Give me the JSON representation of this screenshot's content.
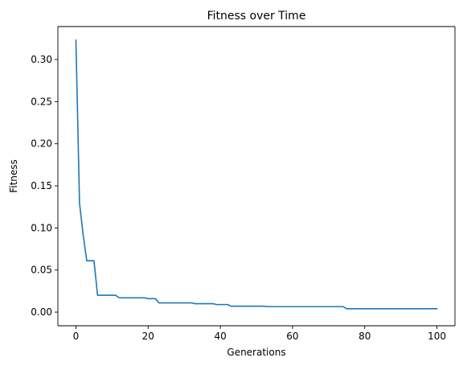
{
  "chart_data": {
    "type": "line",
    "title": "Fitness over Time",
    "xlabel": "Generations",
    "ylabel": "Fitness",
    "xlim": [
      -5,
      105
    ],
    "ylim": [
      -0.0162,
      0.3392
    ],
    "xticks": [
      0,
      20,
      40,
      60,
      80,
      100
    ],
    "xtick_labels": [
      "0",
      "20",
      "40",
      "60",
      "80",
      "100"
    ],
    "yticks": [
      0.0,
      0.05,
      0.1,
      0.15,
      0.2,
      0.25,
      0.3
    ],
    "ytick_labels": [
      "0.00",
      "0.05",
      "0.10",
      "0.15",
      "0.20",
      "0.25",
      "0.30"
    ],
    "grid": false,
    "series": [
      {
        "color": "#1f77b4",
        "x": [
          0,
          1,
          2,
          3,
          4,
          5,
          6,
          7,
          8,
          9,
          10,
          11,
          12,
          13,
          14,
          15,
          16,
          17,
          18,
          19,
          20,
          21,
          22,
          23,
          24,
          25,
          26,
          27,
          28,
          29,
          30,
          31,
          32,
          33,
          34,
          35,
          36,
          37,
          38,
          39,
          40,
          41,
          42,
          43,
          44,
          45,
          46,
          47,
          48,
          49,
          50,
          51,
          52,
          53,
          54,
          55,
          56,
          57,
          58,
          59,
          60,
          61,
          62,
          63,
          64,
          65,
          66,
          67,
          68,
          69,
          70,
          71,
          72,
          73,
          74,
          75,
          76,
          77,
          78,
          79,
          80,
          81,
          82,
          83,
          84,
          85,
          86,
          87,
          88,
          89,
          90,
          91,
          92,
          93,
          94,
          95,
          96,
          97,
          98,
          99,
          100
        ],
        "y": [
          0.323,
          0.129,
          0.092,
          0.061,
          0.061,
          0.061,
          0.02,
          0.02,
          0.02,
          0.02,
          0.02,
          0.02,
          0.017,
          0.017,
          0.017,
          0.017,
          0.017,
          0.017,
          0.017,
          0.017,
          0.016,
          0.016,
          0.016,
          0.011,
          0.011,
          0.011,
          0.011,
          0.011,
          0.011,
          0.011,
          0.011,
          0.011,
          0.011,
          0.01,
          0.01,
          0.01,
          0.01,
          0.01,
          0.01,
          0.009,
          0.009,
          0.009,
          0.009,
          0.007,
          0.007,
          0.007,
          0.007,
          0.007,
          0.007,
          0.007,
          0.007,
          0.007,
          0.007,
          0.0065,
          0.0065,
          0.0065,
          0.0065,
          0.0065,
          0.0065,
          0.0065,
          0.0065,
          0.0065,
          0.0065,
          0.0065,
          0.0065,
          0.0065,
          0.0065,
          0.0065,
          0.0065,
          0.0065,
          0.0065,
          0.0065,
          0.0065,
          0.0065,
          0.0065,
          0.004,
          0.004,
          0.004,
          0.004,
          0.004,
          0.004,
          0.004,
          0.004,
          0.004,
          0.004,
          0.004,
          0.004,
          0.004,
          0.004,
          0.004,
          0.004,
          0.004,
          0.004,
          0.004,
          0.004,
          0.004,
          0.004,
          0.004,
          0.004,
          0.004,
          0.004
        ]
      }
    ]
  }
}
